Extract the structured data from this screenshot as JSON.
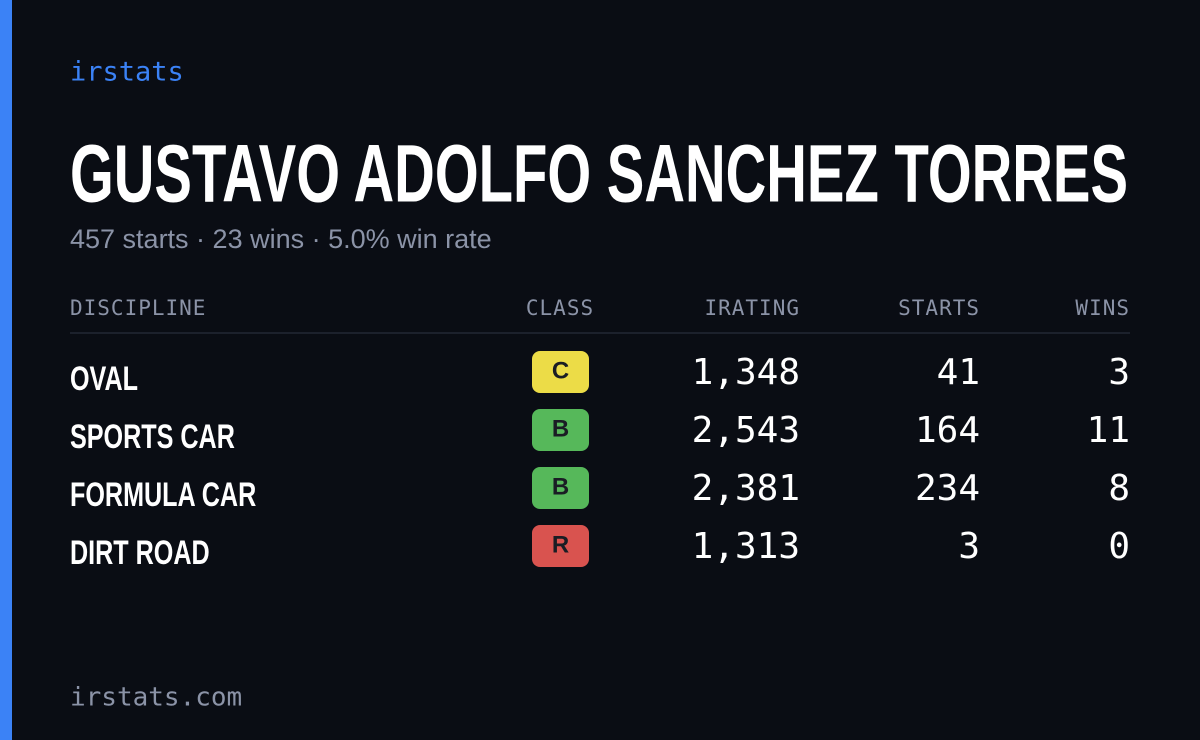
{
  "brand": "irstats",
  "driver": {
    "name": "GUSTAVO ADOLFO SANCHEZ TORRES",
    "summary": "457 starts · 23 wins · 5.0% win rate"
  },
  "table": {
    "headers": [
      "DISCIPLINE",
      "CLASS",
      "IRATING",
      "STARTS",
      "WINS"
    ],
    "rows": [
      {
        "discipline": "OVAL",
        "class": "C",
        "badge_color": "#ecdc47",
        "irating": "1,348",
        "starts": "41",
        "wins": "3"
      },
      {
        "discipline": "SPORTS CAR",
        "class": "B",
        "badge_color": "#56b85a",
        "irating": "2,543",
        "starts": "164",
        "wins": "11"
      },
      {
        "discipline": "FORMULA CAR",
        "class": "B",
        "badge_color": "#56b85a",
        "irating": "2,381",
        "starts": "234",
        "wins": "8"
      },
      {
        "discipline": "DIRT ROAD",
        "class": "R",
        "badge_color": "#d9534f",
        "irating": "1,313",
        "starts": "3",
        "wins": "0"
      }
    ]
  },
  "footer": "irstats.com"
}
